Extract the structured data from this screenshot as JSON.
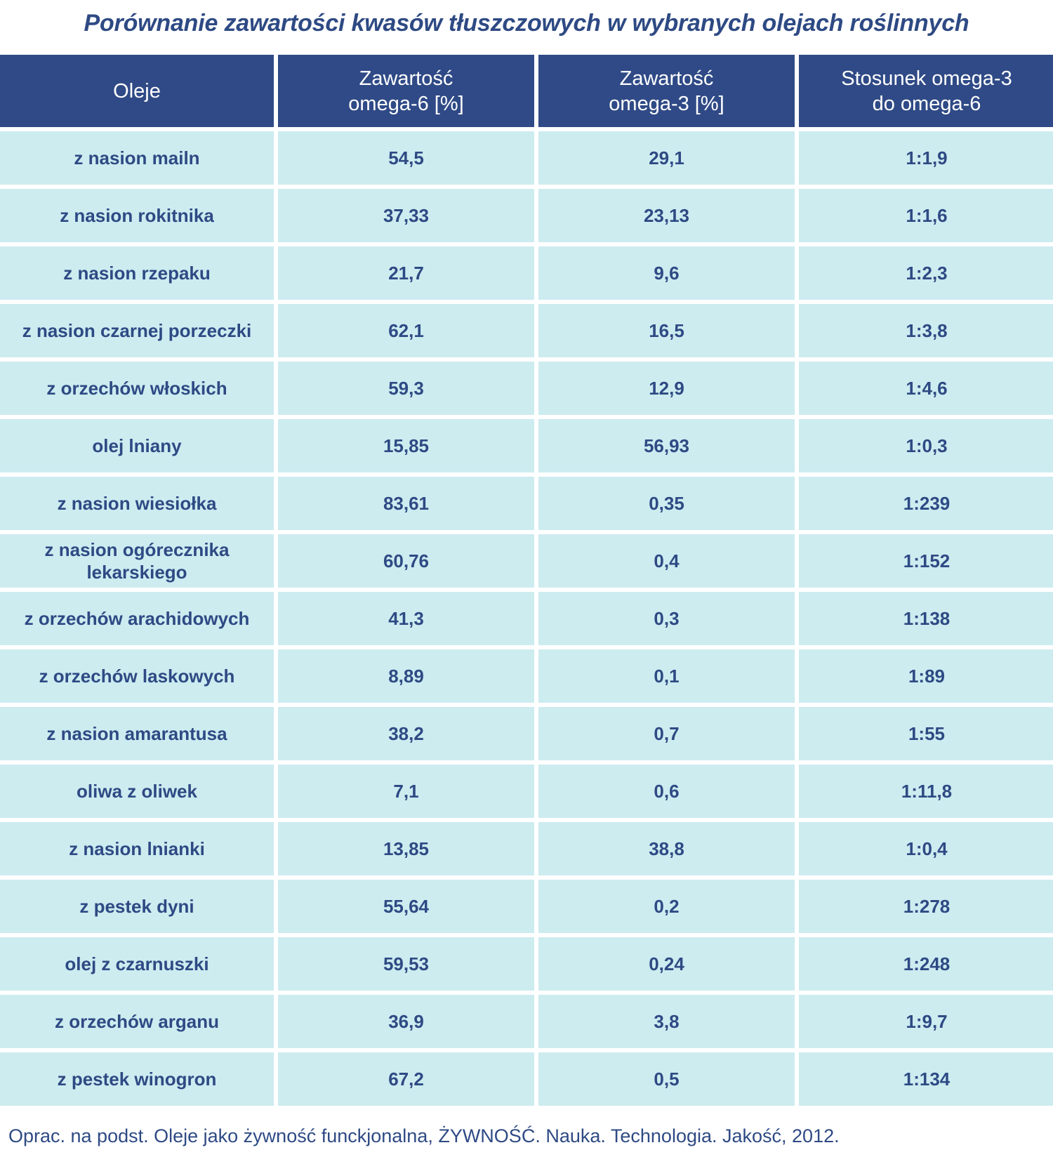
{
  "chart_data": {
    "type": "table",
    "title": "Porównanie zawartości kwasów tłuszczowych w wybranych olejach roślinnych",
    "columns": [
      {
        "key": "name",
        "label_lines": [
          "Oleje"
        ]
      },
      {
        "key": "omega6",
        "label_lines": [
          "Zawartość",
          "omega-6 [%]"
        ]
      },
      {
        "key": "omega3",
        "label_lines": [
          "Zawartość",
          "omega-3 [%]"
        ]
      },
      {
        "key": "ratio",
        "label_lines": [
          "Stosunek omega-3",
          "do omega-6"
        ]
      }
    ],
    "rows": [
      {
        "name": "z nasion mailn",
        "omega6": "54,5",
        "omega3": "29,1",
        "ratio": "1:1,9"
      },
      {
        "name": "z nasion rokitnika",
        "omega6": "37,33",
        "omega3": "23,13",
        "ratio": "1:1,6"
      },
      {
        "name": "z nasion rzepaku",
        "omega6": "21,7",
        "omega3": "9,6",
        "ratio": "1:2,3"
      },
      {
        "name": "z nasion czarnej porzeczki",
        "omega6": "62,1",
        "omega3": "16,5",
        "ratio": "1:3,8"
      },
      {
        "name": "z orzechów włoskich",
        "omega6": "59,3",
        "omega3": "12,9",
        "ratio": "1:4,6"
      },
      {
        "name": "olej lniany",
        "omega6": "15,85",
        "omega3": "56,93",
        "ratio": "1:0,3"
      },
      {
        "name": "z nasion wiesiołka",
        "omega6": "83,61",
        "omega3": "0,35",
        "ratio": "1:239"
      },
      {
        "name": "z nasion ogórecznika lekarskiego",
        "omega6": "60,76",
        "omega3": "0,4",
        "ratio": "1:152"
      },
      {
        "name": "z orzechów arachidowych",
        "omega6": "41,3",
        "omega3": "0,3",
        "ratio": "1:138"
      },
      {
        "name": "z orzechów laskowych",
        "omega6": "8,89",
        "omega3": "0,1",
        "ratio": "1:89"
      },
      {
        "name": "z nasion amarantusa",
        "omega6": "38,2",
        "omega3": "0,7",
        "ratio": "1:55"
      },
      {
        "name": "oliwa z oliwek",
        "omega6": "7,1",
        "omega3": "0,6",
        "ratio": "1:11,8"
      },
      {
        "name": "z nasion lnianki",
        "omega6": "13,85",
        "omega3": "38,8",
        "ratio": "1:0,4"
      },
      {
        "name": "z pestek dyni",
        "omega6": "55,64",
        "omega3": "0,2",
        "ratio": "1:278"
      },
      {
        "name": "olej z czarnuszki",
        "omega6": "59,53",
        "omega3": "0,24",
        "ratio": "1:248"
      },
      {
        "name": "z orzechów arganu",
        "omega6": "36,9",
        "omega3": "3,8",
        "ratio": "1:9,7"
      },
      {
        "name": "z pestek winogron",
        "omega6": "67,2",
        "omega3": "0,5",
        "ratio": "1:134"
      }
    ],
    "source": "Oprac. na podst. Oleje jako żywność funckjonalna, ŻYWNOŚĆ. Nauka. Technologia. Jakość, 2012."
  },
  "colors": {
    "header_bg": "#2f4a86",
    "header_text": "#ffffff",
    "cell_bg": "#cdecf0",
    "text": "#2e4a84"
  }
}
